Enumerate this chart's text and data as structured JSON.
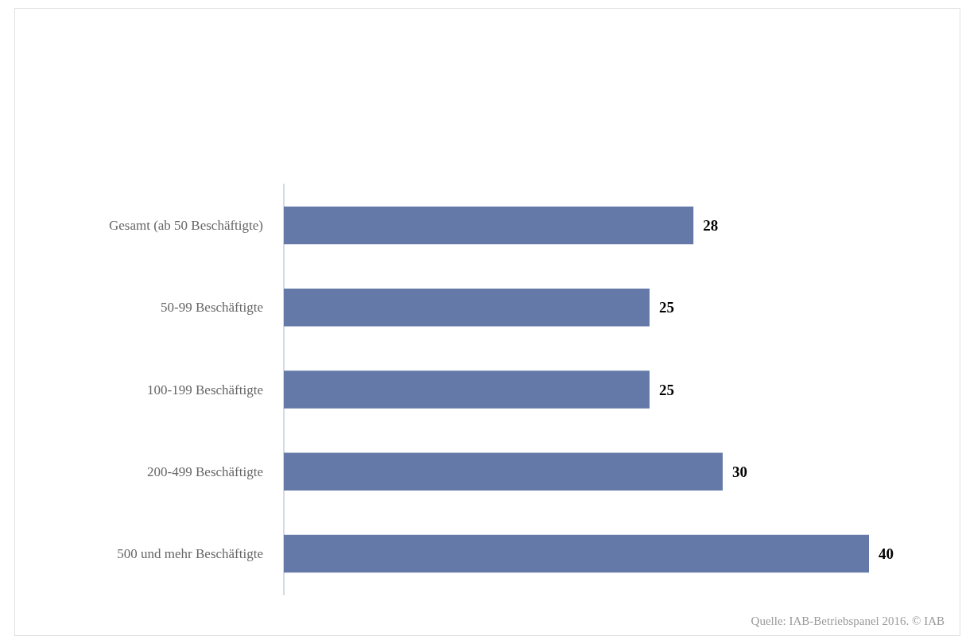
{
  "chart_data": {
    "type": "bar",
    "orientation": "horizontal",
    "categories": [
      "Gesamt (ab 50 Beschäftigte)",
      "50-99 Beschäftigte",
      "100-199 Beschäftigte",
      "200-499 Beschäftigte",
      "500 und mehr Beschäftigte"
    ],
    "values": [
      28,
      25,
      25,
      30,
      40
    ],
    "color": "#6479a8",
    "data_labels": true,
    "annotations": [
      "Quelle: IAB-Betriebspanel 2016. © IAB"
    ]
  }
}
